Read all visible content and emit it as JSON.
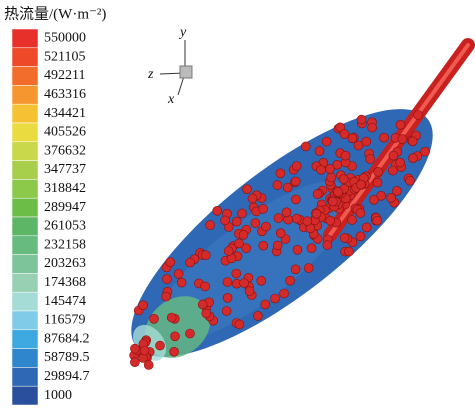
{
  "legend": {
    "title": "热流量/(W·m⁻²)",
    "levels": [
      {
        "label": "550000",
        "color": "#e8302a"
      },
      {
        "label": "521105",
        "color": "#ee4a2a"
      },
      {
        "label": "492211",
        "color": "#f26d2b"
      },
      {
        "label": "463316",
        "color": "#f5962e"
      },
      {
        "label": "434421",
        "color": "#f4c232"
      },
      {
        "label": "405526",
        "color": "#eadc40"
      },
      {
        "label": "376632",
        "color": "#c8d84a"
      },
      {
        "label": "347737",
        "color": "#a8cf4c"
      },
      {
        "label": "318842",
        "color": "#8cc84a"
      },
      {
        "label": "289947",
        "color": "#6cbd48"
      },
      {
        "label": "261053",
        "color": "#5db566"
      },
      {
        "label": "232158",
        "color": "#67bb7f"
      },
      {
        "label": "203263",
        "color": "#7ec49a"
      },
      {
        "label": "174368",
        "color": "#98d0b4"
      },
      {
        "label": "145474",
        "color": "#a6dcd6"
      },
      {
        "label": "116579",
        "color": "#7fcbe8"
      },
      {
        "label": "87684.2",
        "color": "#3ea8e0"
      },
      {
        "label": "58789.5",
        "color": "#2f86cc"
      },
      {
        "label": "29894.7",
        "color": "#2f68b4"
      },
      {
        "label": "1000",
        "color": "#2a4f9c"
      }
    ]
  },
  "axes": {
    "y": "y",
    "z": "z",
    "x": "x"
  }
}
